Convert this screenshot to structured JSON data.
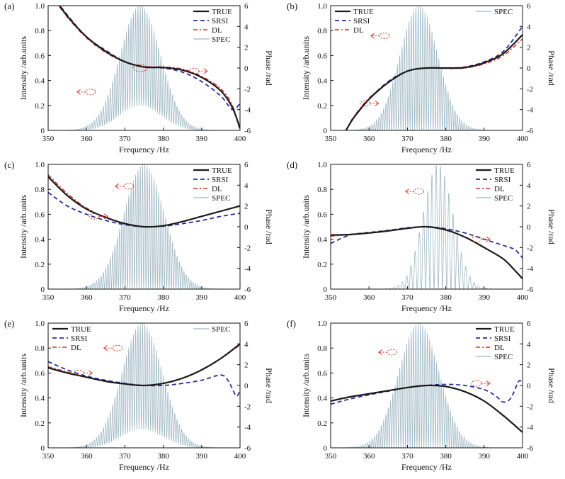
{
  "figure": {
    "common": {
      "xlabel": "Frequency /Hz",
      "ylabel_left": "Intensity /arb.units",
      "ylabel_right": "Phase /rad",
      "xticks": [
        350,
        360,
        370,
        380,
        390,
        400
      ],
      "yticks_left": [
        "0",
        "0.2",
        "0.4",
        "0.6",
        "0.8",
        "1.0"
      ],
      "yticks_right": [
        "-6",
        "-4",
        "-2",
        "0",
        "2",
        "4",
        "6"
      ],
      "series_styles": {
        "TRUE": {
          "color": "#1a1a1a",
          "dash": "none",
          "width": 2.2
        },
        "SRSI": {
          "color": "#2b2b9a",
          "dash": "6,4",
          "width": 1.8
        },
        "DL": {
          "color": "#d8322a",
          "dash": "6,3,2,3",
          "width": 1.6
        },
        "SPEC": {
          "color": "#9fb8c4",
          "dash": "none",
          "width": 0.8
        }
      }
    }
  },
  "chart_data": [
    {
      "panel_label": "(a)",
      "type": "line",
      "xlim": [
        350,
        400
      ],
      "ylim_left": [
        0,
        1
      ],
      "ylim_right": [
        -6,
        6
      ],
      "legend": [
        "TRUE",
        "SRSI",
        "DL",
        "SPEC"
      ],
      "legend_position": "top-right",
      "spec": {
        "center": 374,
        "width": 7.5,
        "floor": 0.2,
        "fringe_period": 0.6,
        "envelope_frac_of_x": 0.5
      },
      "series": [
        {
          "name": "TRUE",
          "axis": "right",
          "x": [
            350,
            355,
            360,
            365,
            370,
            375,
            380,
            385,
            390,
            395,
            398,
            400
          ],
          "y": [
            7.5,
            5.0,
            3.0,
            1.6,
            0.6,
            0.1,
            0.05,
            -0.2,
            -0.9,
            -2.2,
            -3.8,
            -5.8
          ]
        },
        {
          "name": "SRSI",
          "axis": "right",
          "x": [
            350,
            355,
            360,
            365,
            370,
            375,
            380,
            385,
            390,
            395,
            398,
            400
          ],
          "y": [
            7.5,
            5.1,
            3.0,
            1.7,
            0.6,
            0.1,
            0.0,
            -0.4,
            -1.3,
            -2.7,
            -4.0,
            -3.4
          ]
        },
        {
          "name": "DL",
          "axis": "right",
          "x": [
            350,
            355,
            360,
            365,
            370,
            375,
            380,
            385,
            390,
            395,
            398,
            400
          ],
          "y": [
            7.4,
            4.9,
            2.9,
            1.5,
            0.6,
            0.15,
            0.1,
            -0.1,
            -0.8,
            -2.0,
            -3.6,
            -6.0
          ]
        }
      ],
      "arrows": [
        {
          "dir": "left",
          "x": 361,
          "y": -2.3
        },
        {
          "dir": "right",
          "x": 388,
          "y": -0.3
        },
        {
          "dir": "none",
          "x": 374,
          "y": 0
        }
      ]
    },
    {
      "panel_label": "(b)",
      "type": "line",
      "xlim": [
        350,
        400
      ],
      "ylim_left": [
        0,
        1
      ],
      "ylim_right": [
        -6,
        6
      ],
      "legend": [
        "TRUE",
        "SRSI",
        "DL",
        "SPEC"
      ],
      "legend_position": "top",
      "spec": {
        "center": 373,
        "width": 7,
        "floor": 0.0,
        "fringe_period": 0.6
      },
      "series": [
        {
          "name": "TRUE",
          "axis": "right",
          "x": [
            354,
            356,
            360,
            365,
            370,
            375,
            380,
            385,
            390,
            395,
            400
          ],
          "y": [
            -6.0,
            -4.8,
            -3.0,
            -1.4,
            -0.3,
            0.0,
            0.0,
            0.05,
            0.5,
            1.4,
            3.2
          ]
        },
        {
          "name": "SRSI",
          "axis": "right",
          "x": [
            354,
            356,
            360,
            365,
            370,
            375,
            380,
            385,
            390,
            395,
            400
          ],
          "y": [
            -6.0,
            -4.8,
            -3.0,
            -1.3,
            -0.3,
            0.0,
            0.0,
            0.1,
            0.6,
            1.6,
            4.0
          ]
        },
        {
          "name": "DL",
          "axis": "right",
          "x": [
            354,
            356,
            360,
            365,
            370,
            375,
            380,
            385,
            390,
            395,
            400
          ],
          "y": [
            -6.0,
            -4.7,
            -2.9,
            -1.4,
            -0.3,
            0.0,
            -0.05,
            0.0,
            0.4,
            1.2,
            2.8
          ]
        }
      ],
      "arrows": [
        {
          "dir": "left",
          "x": 364,
          "y": 3.1
        },
        {
          "dir": "right",
          "x": 359,
          "y": -3.4
        }
      ]
    },
    {
      "panel_label": "(c)",
      "type": "line",
      "xlim": [
        350,
        400
      ],
      "ylim_left": [
        0,
        1
      ],
      "ylim_right": [
        -6,
        6
      ],
      "legend": [
        "TRUE",
        "SRSI",
        "DL",
        "SPEC"
      ],
      "legend_position": "top-right",
      "spec": {
        "center": 375,
        "width": 7.5,
        "floor": 0.0,
        "fringe_period": 0.6
      },
      "series": [
        {
          "name": "TRUE",
          "axis": "right",
          "x": [
            350,
            355,
            360,
            365,
            370,
            375,
            380,
            385,
            390,
            395,
            400
          ],
          "y": [
            4.8,
            3.0,
            1.7,
            0.9,
            0.3,
            0.0,
            0.1,
            0.5,
            1.0,
            1.5,
            2.0
          ]
        },
        {
          "name": "SRSI",
          "axis": "right",
          "x": [
            350,
            355,
            360,
            365,
            370,
            375,
            380,
            385,
            390,
            395,
            400
          ],
          "y": [
            3.3,
            2.0,
            1.2,
            0.6,
            0.2,
            0.0,
            0.05,
            0.3,
            0.6,
            1.0,
            1.3
          ]
        },
        {
          "name": "DL",
          "axis": "right",
          "x": [
            350,
            355,
            360,
            365,
            370,
            375,
            380,
            385,
            390,
            395,
            400
          ],
          "y": [
            5.0,
            3.2,
            1.8,
            0.9,
            0.3,
            0.0,
            0.1,
            0.5,
            1.0,
            1.5,
            2.0
          ]
        }
      ],
      "arrows": [
        {
          "dir": "left",
          "x": 371,
          "y": 3.9
        },
        {
          "dir": "right",
          "x": 362,
          "y": 1.0
        }
      ]
    },
    {
      "panel_label": "(d)",
      "type": "line",
      "xlim": [
        350,
        400
      ],
      "ylim_left": [
        0,
        1
      ],
      "ylim_right": [
        -6,
        6
      ],
      "legend": [
        "TRUE",
        "SRSI",
        "DL",
        "SPEC"
      ],
      "legend_position": "top-right",
      "spec": {
        "center": 378,
        "width": 5.5,
        "floor": 0.0,
        "fringe_period": 1.1
      },
      "series": [
        {
          "name": "TRUE",
          "axis": "right",
          "x": [
            350,
            355,
            360,
            365,
            370,
            375,
            380,
            385,
            390,
            395,
            398,
            400
          ],
          "y": [
            -0.8,
            -0.75,
            -0.6,
            -0.4,
            -0.15,
            0.0,
            -0.3,
            -1.0,
            -2.0,
            -3.1,
            -4.2,
            -5.0
          ]
        },
        {
          "name": "SRSI",
          "axis": "right",
          "x": [
            350,
            355,
            360,
            365,
            370,
            375,
            380,
            385,
            390,
            395,
            398,
            400
          ],
          "y": [
            -1.6,
            -0.8,
            -0.55,
            -0.35,
            -0.1,
            0.0,
            -0.2,
            -0.6,
            -1.2,
            -1.8,
            -2.2,
            -3.0
          ]
        },
        {
          "name": "DL",
          "axis": "right",
          "x": [
            350,
            355,
            360,
            365,
            370,
            375,
            380,
            385,
            390,
            395,
            398,
            400
          ],
          "y": [
            -0.9,
            -0.75,
            -0.6,
            -0.4,
            -0.15,
            0.0,
            -0.3,
            -1.0,
            -2.0,
            -3.1,
            -4.2,
            -5.0
          ]
        }
      ],
      "arrows": [
        {
          "dir": "left",
          "x": 373,
          "y": 3.4
        },
        {
          "dir": "right",
          "x": 388,
          "y": -1.2
        }
      ]
    },
    {
      "panel_label": "(e)",
      "type": "line",
      "xlim": [
        350,
        400
      ],
      "ylim_left": [
        0,
        1
      ],
      "ylim_right": [
        -6,
        6
      ],
      "legend": [
        "TRUE",
        "SRSI",
        "DL",
        "SPEC"
      ],
      "legend_position": "top",
      "spec": {
        "center": 374.5,
        "width": 7.5,
        "floor": 0.15,
        "fringe_period": 0.6
      },
      "series": [
        {
          "name": "TRUE",
          "axis": "right",
          "x": [
            350,
            355,
            360,
            365,
            370,
            375,
            380,
            385,
            390,
            395,
            400
          ],
          "y": [
            1.7,
            1.2,
            0.8,
            0.4,
            0.15,
            0.0,
            0.2,
            0.7,
            1.5,
            2.6,
            4.0
          ]
        },
        {
          "name": "SRSI",
          "axis": "right",
          "x": [
            350,
            355,
            360,
            365,
            370,
            375,
            380,
            385,
            390,
            395,
            397,
            399,
            400
          ],
          "y": [
            2.3,
            1.5,
            0.9,
            0.5,
            0.2,
            0.0,
            0.0,
            0.2,
            0.5,
            1.0,
            0.4,
            -1.0,
            -0.4
          ]
        },
        {
          "name": "DL",
          "axis": "right",
          "x": [
            350,
            355,
            360,
            365,
            370,
            375,
            380,
            385,
            390,
            395,
            400
          ],
          "y": [
            1.8,
            1.3,
            0.8,
            0.4,
            0.15,
            0.0,
            0.2,
            0.7,
            1.5,
            2.6,
            3.9
          ]
        }
      ],
      "arrows": [
        {
          "dir": "left",
          "x": 368,
          "y": 3.6
        },
        {
          "dir": "right",
          "x": 358,
          "y": 1.2
        }
      ]
    },
    {
      "panel_label": "(f)",
      "type": "line",
      "xlim": [
        350,
        400
      ],
      "ylim_left": [
        0,
        1
      ],
      "ylim_right": [
        -6,
        6
      ],
      "legend": [
        "TRUE",
        "SRSI",
        "DL",
        "SPEC"
      ],
      "legend_position": "top-right",
      "spec": {
        "center": 373,
        "width": 7.5,
        "floor": 0.0,
        "fringe_period": 0.6
      },
      "series": [
        {
          "name": "TRUE",
          "axis": "right",
          "x": [
            350,
            355,
            360,
            365,
            370,
            375,
            380,
            385,
            390,
            395,
            400
          ],
          "y": [
            -1.5,
            -1.1,
            -0.8,
            -0.5,
            -0.2,
            0.0,
            -0.1,
            -0.6,
            -1.5,
            -2.9,
            -4.5
          ]
        },
        {
          "name": "SRSI",
          "axis": "right",
          "x": [
            350,
            355,
            360,
            365,
            370,
            375,
            380,
            385,
            390,
            393,
            395,
            397,
            399,
            400
          ],
          "y": [
            -1.8,
            -1.3,
            -0.9,
            -0.55,
            -0.2,
            0.0,
            0.1,
            0.0,
            -0.4,
            -1.0,
            -1.6,
            -1.2,
            0.4,
            0.2
          ]
        },
        {
          "name": "DL",
          "axis": "right",
          "x": [
            350,
            355,
            360,
            365,
            370,
            375,
            380,
            385,
            390,
            395,
            400
          ],
          "y": [
            -1.5,
            -1.1,
            -0.8,
            -0.5,
            -0.2,
            0.0,
            -0.1,
            -0.6,
            -1.5,
            -2.9,
            -4.5
          ]
        }
      ],
      "arrows": [
        {
          "dir": "left",
          "x": 366,
          "y": 3.2
        },
        {
          "dir": "right",
          "x": 388,
          "y": 0.2
        }
      ]
    }
  ]
}
